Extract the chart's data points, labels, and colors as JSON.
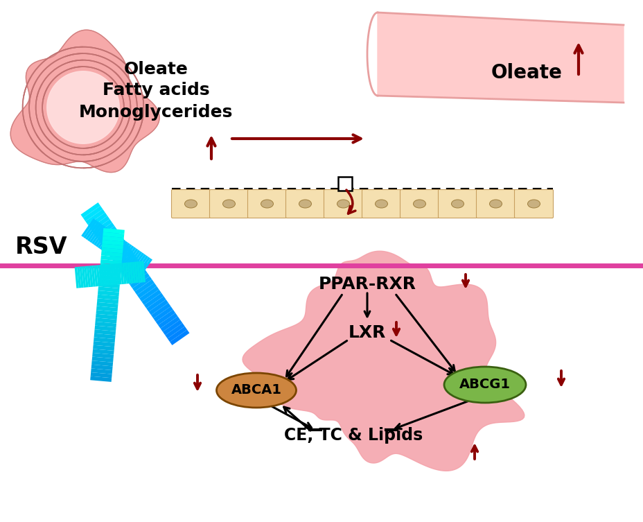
{
  "bg_color": "#ffffff",
  "dark_red": "#8B0000",
  "pink_blob": "#F4A0A8",
  "magenta_line_color": "#E0409F",
  "abca1_color": "#CD853F",
  "abcg1_color": "#7AB648",
  "intestine_color": "#F5A0A0",
  "vessel_color": "#FFCCCC",
  "cell_row_color": "#F5E0B0",
  "rsv_label": "RSV",
  "ppar_rxr_label": "PPAR-RXR",
  "lxr_label": "LXR",
  "abca1_label": "ABCA1",
  "abcg1_label": "ABCG1",
  "lipids_label": "CE, TC & Lipids",
  "oleate_label1_line1": "Oleate",
  "oleate_label1_line2": "Fatty acids",
  "oleate_label1_line3": "Monoglycerides",
  "oleate_label2": "Oleate"
}
